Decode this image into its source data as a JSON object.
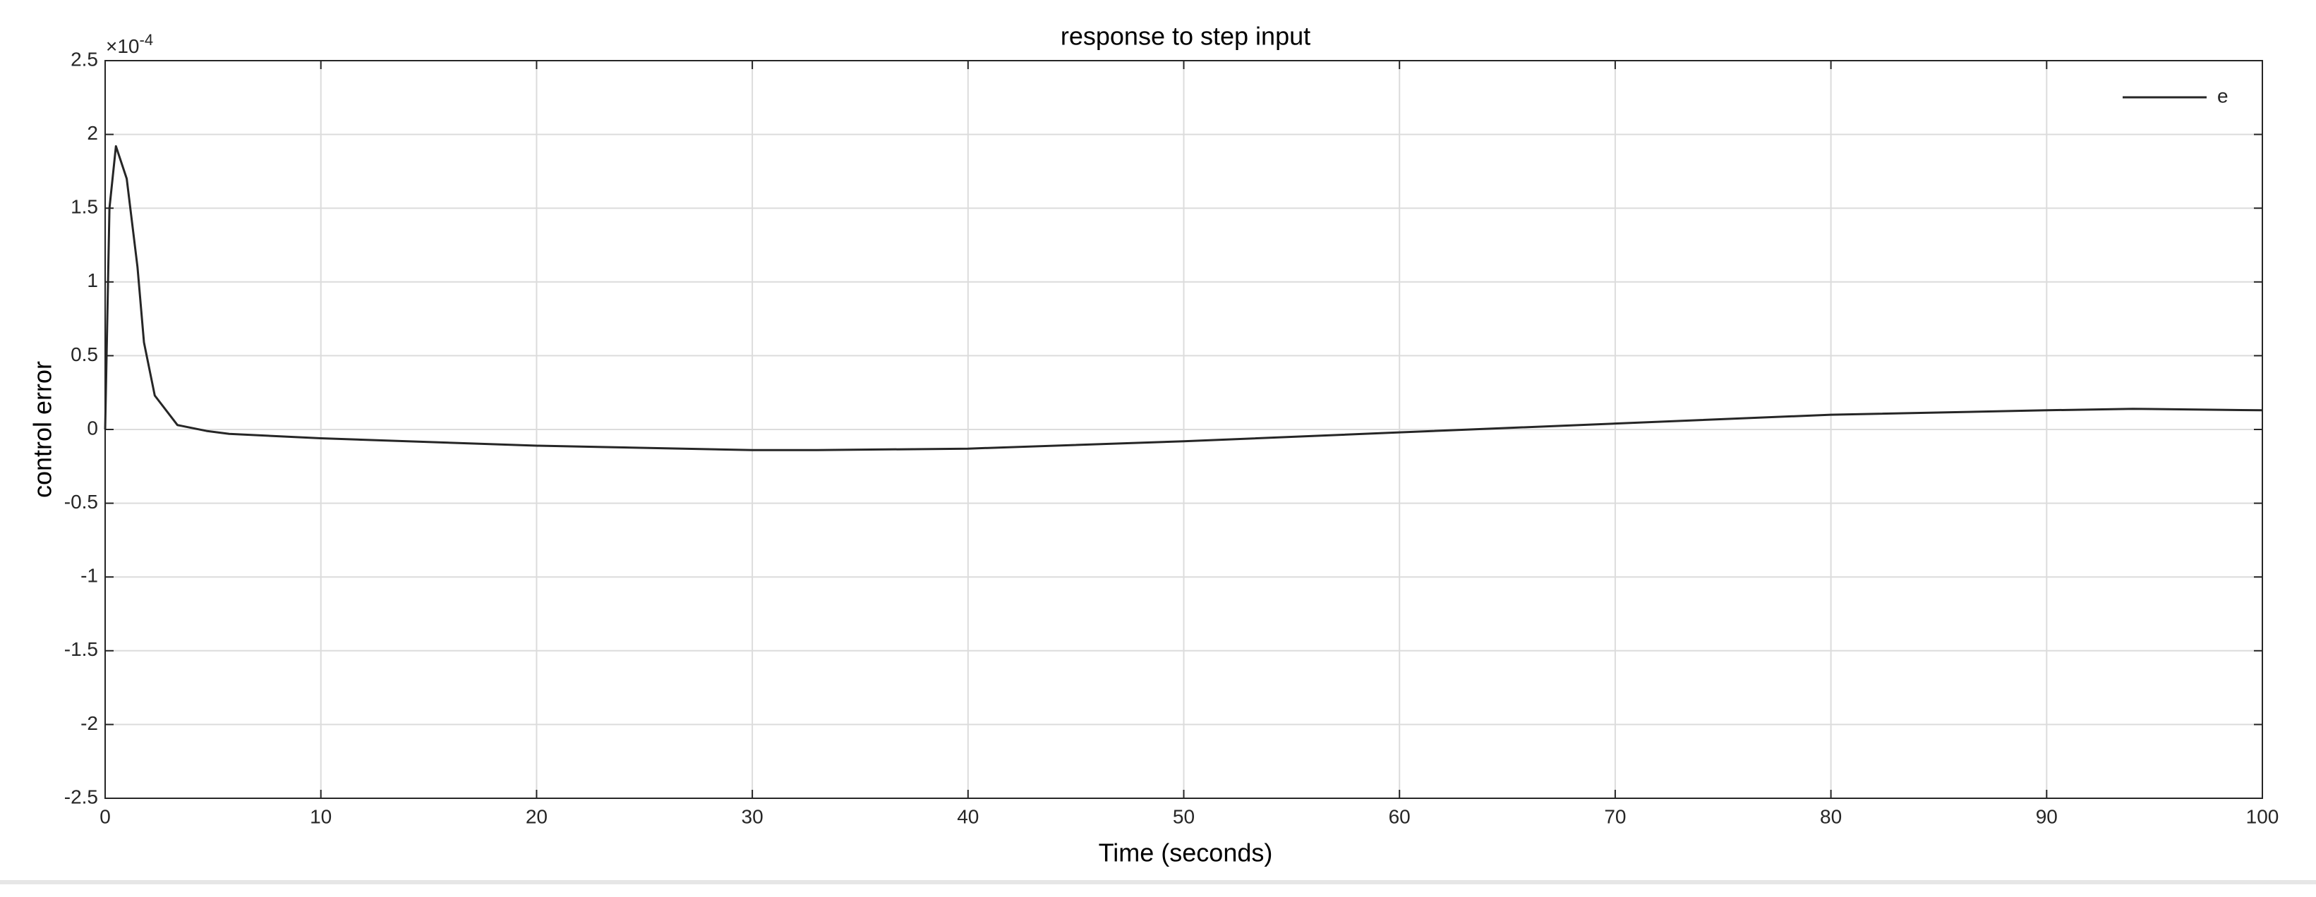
{
  "chart_data": {
    "type": "line",
    "title": "response to step input",
    "x_label": "Time (seconds)",
    "y_label": "control error",
    "y_multiplier": "×10",
    "y_multiplier_exponent": "-4",
    "x": [
      0,
      0.2,
      0.5,
      1,
      1.5,
      1.8,
      2.3,
      3.35,
      4.7,
      5.75,
      10,
      20,
      30,
      33,
      40,
      50,
      60,
      65,
      70,
      80,
      90,
      94,
      100
    ],
    "series": [
      {
        "name": "e",
        "color": "#262626",
        "values": [
          0,
          1.5,
          1.92,
          1.7,
          1.1,
          0.59,
          0.23,
          0.03,
          -0.01,
          -0.03,
          -0.06,
          -0.11,
          -0.14,
          -0.14,
          -0.13,
          -0.08,
          -0.02,
          0.01,
          0.04,
          0.1,
          0.13,
          0.14,
          0.13
        ]
      }
    ],
    "xlim": [
      0,
      100
    ],
    "ylim": [
      -2.5,
      2.5
    ],
    "xticks": [
      0,
      10,
      20,
      30,
      40,
      50,
      60,
      70,
      80,
      90,
      100
    ],
    "yticks": [
      -2.5,
      -2,
      -1.5,
      -1,
      -0.5,
      0,
      0.5,
      1,
      1.5,
      2,
      2.5
    ],
    "grid": true,
    "legend_position": "upper right"
  }
}
